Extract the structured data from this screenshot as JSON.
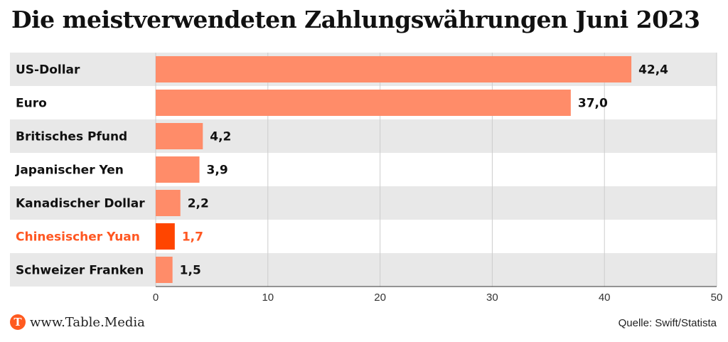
{
  "chart_data": {
    "type": "bar",
    "orientation": "horizontal",
    "title": "Die meistverwendeten Zahlungswährungen Juni 2023",
    "categories": [
      "US-Dollar",
      "Euro",
      "Britisches Pfund",
      "Japanischer Yen",
      "Kanadischer Dollar",
      "Chinesischer Yuan",
      "Schweizer Franken"
    ],
    "values": [
      42.4,
      37.0,
      4.2,
      3.9,
      2.2,
      1.7,
      1.5
    ],
    "value_labels": [
      "42,4",
      "37,0",
      "4,2",
      "3,9",
      "2,2",
      "1,7",
      "1,5"
    ],
    "highlight_index": 5,
    "xlim": [
      0,
      50
    ],
    "xticks": [
      0,
      10,
      20,
      30,
      40,
      50
    ],
    "grid": true,
    "colors": {
      "bar": "#ff8c69",
      "bar_highlight": "#ff4500",
      "label_highlight": "#ff5722",
      "row_band": "#e8e8e8",
      "grid": "#cccccc"
    }
  },
  "footer": {
    "logo_letter": "T",
    "site": "www.Table.Media",
    "source": "Quelle: Swift/Statista"
  }
}
